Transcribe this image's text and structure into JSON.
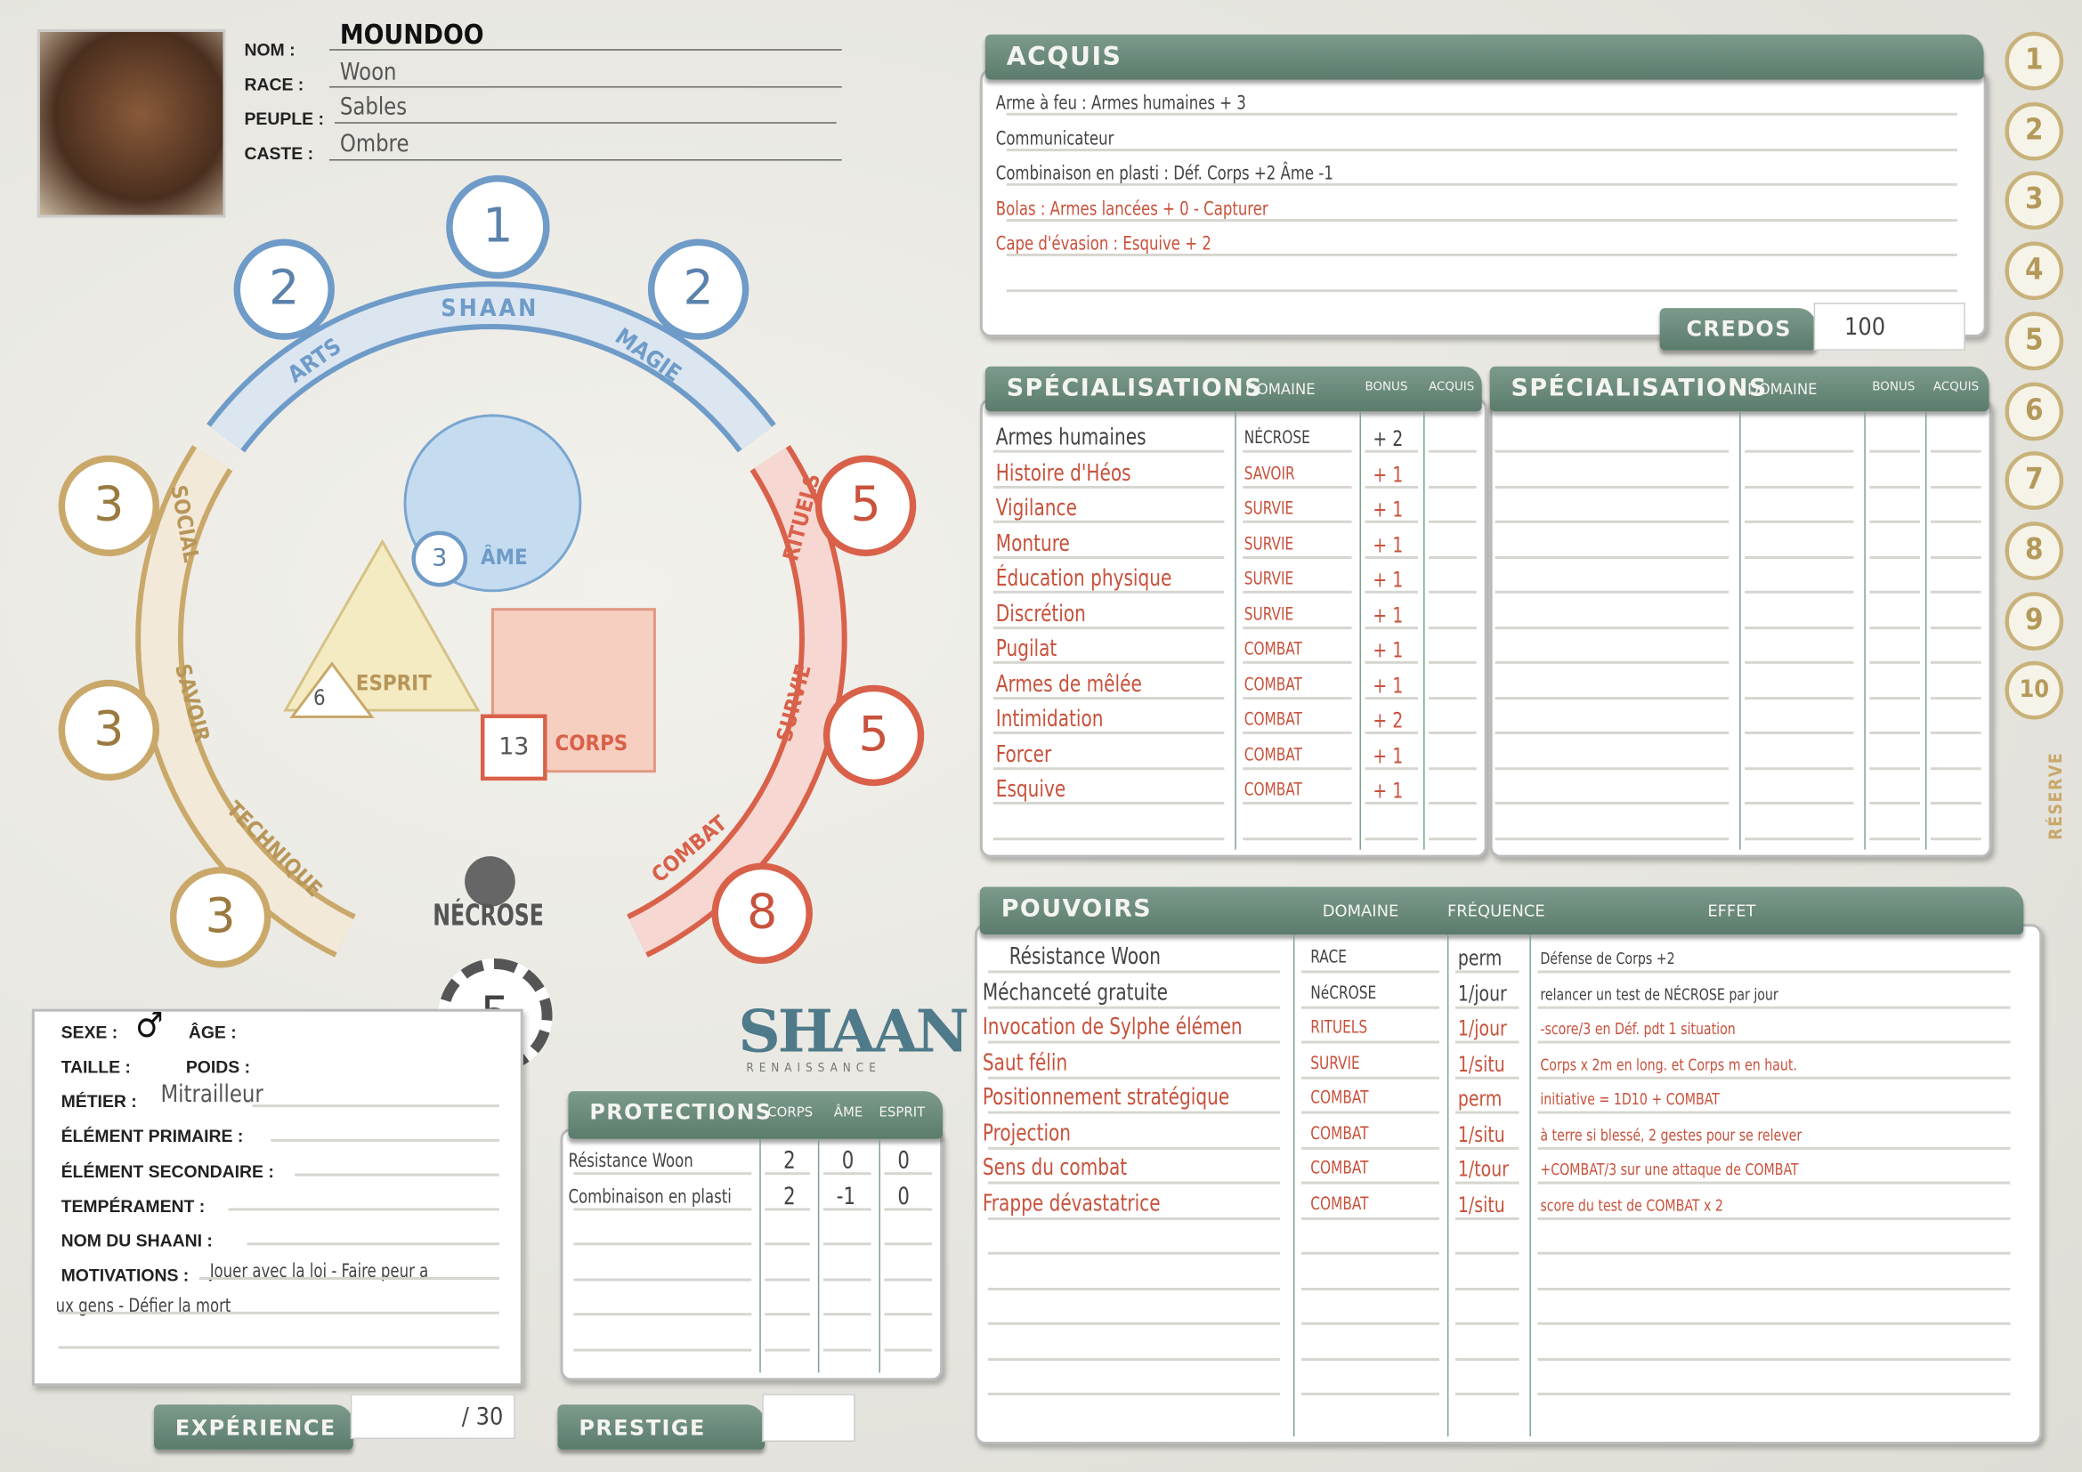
{
  "identity": {
    "nom_label": "NOM :",
    "nom": "MOUNDOO",
    "race_label": "RACE :",
    "race": "Woon",
    "peuple_label": "PEUPLE :",
    "peuple": "Sables",
    "caste_label": "CASTE :",
    "caste": "Ombre"
  },
  "wheel": {
    "shaan": {
      "label": "SHAAN",
      "score": "1"
    },
    "arts": {
      "label": "ARTS",
      "score": "2"
    },
    "magie": {
      "label": "MAGIE",
      "score": "2"
    },
    "social": {
      "label": "SOCIAL",
      "score": "3"
    },
    "savoir": {
      "label": "SAVOIR",
      "score": "3"
    },
    "technique": {
      "label": "TECHNIQUE",
      "score": "3"
    },
    "rituels": {
      "label": "RITUELS",
      "score": "5"
    },
    "survie": {
      "label": "SURVIE",
      "score": "5"
    },
    "combat": {
      "label": "COMBAT",
      "score": "8"
    },
    "necrose": {
      "label": "NÉCROSE",
      "score": "5"
    },
    "ame": {
      "label": "ÂME",
      "score": "3"
    },
    "esprit": {
      "label": "ESPRIT",
      "score": "6"
    },
    "corps": {
      "label": "CORPS",
      "score": "13"
    },
    "colors": {
      "shaan": "#6f9bc8",
      "humain": "#c9a86a",
      "necrose": "#d9614a"
    }
  },
  "profile": {
    "sexe_label": "SEXE :",
    "sexe_icon": "male-symbol",
    "age_label": "ÂGE :",
    "taille_label": "TAILLE :",
    "poids_label": "POIDS :",
    "metier_label": "MÉTIER :",
    "metier": "Mitrailleur",
    "element_primaire_label": "ÉLÉMENT PRIMAIRE :",
    "element_secondaire_label": "ÉLÉMENT SECONDAIRE :",
    "temperament_label": "TEMPÉRAMENT :",
    "nom_shaani_label": "NOM DU SHAANI :",
    "motivations_label": "MOTIVATIONS :",
    "motivations_line1": "Jouer avec la loi - Faire peur a",
    "motivations_line2": "ux gens - Défier la mort"
  },
  "experience": {
    "label": "EXPÉRIENCE",
    "value": "/ 30"
  },
  "prestige": {
    "label": "PRESTIGE",
    "value": ""
  },
  "logo": {
    "text": "SHAAN",
    "subtitle": "RENAISSANCE"
  },
  "protections": {
    "title": "PROTECTIONS",
    "headers": [
      "CORPS",
      "ÂME",
      "ESPRIT"
    ],
    "rows": [
      {
        "name": "Résistance Woon",
        "corps": "2",
        "ame": "0",
        "esprit": "0"
      },
      {
        "name": "Combinaison en plasti",
        "corps": "2",
        "ame": "-1",
        "esprit": "0"
      }
    ]
  },
  "acquis": {
    "title": "ACQUIS",
    "items": [
      {
        "text": "Arme à feu : Armes humaines + 3",
        "color": "grey"
      },
      {
        "text": "Communicateur",
        "color": "grey"
      },
      {
        "text": "Combinaison en plasti : Déf. Corps +2 Âme -1",
        "color": "grey"
      },
      {
        "text": "Bolas : Armes lancées + 0 - Capturer",
        "color": "red"
      },
      {
        "text": "Cape d'évasion : Esquive + 2",
        "color": "red"
      }
    ],
    "credos_label": "CREDOS",
    "credos": "100"
  },
  "specialisations": {
    "title": "SPÉCIALISATIONS",
    "headers": [
      "DOMAINE",
      "BONUS",
      "ACQUIS"
    ],
    "rows": [
      {
        "name": "Armes humaines",
        "domaine": "NÉCROSE",
        "bonus": "+ 2",
        "color": "grey"
      },
      {
        "name": "Histoire d'Héos",
        "domaine": "SAVOIR",
        "bonus": "+ 1",
        "color": "red"
      },
      {
        "name": "Vigilance",
        "domaine": "SURVIE",
        "bonus": "+ 1",
        "color": "red"
      },
      {
        "name": "Monture",
        "domaine": "SURVIE",
        "bonus": "+ 1",
        "color": "red"
      },
      {
        "name": "Éducation physique",
        "domaine": "SURVIE",
        "bonus": "+ 1",
        "color": "red"
      },
      {
        "name": "Discrétion",
        "domaine": "SURVIE",
        "bonus": "+ 1",
        "color": "red"
      },
      {
        "name": "Pugilat",
        "domaine": "COMBAT",
        "bonus": "+ 1",
        "color": "red"
      },
      {
        "name": "Armes de mêlée",
        "domaine": "COMBAT",
        "bonus": "+ 1",
        "color": "red"
      },
      {
        "name": "Intimidation",
        "domaine": "COMBAT",
        "bonus": "+ 2",
        "color": "red"
      },
      {
        "name": "Forcer",
        "domaine": "COMBAT",
        "bonus": "+ 1",
        "color": "red"
      },
      {
        "name": "Esquive",
        "domaine": "COMBAT",
        "bonus": "+ 1",
        "color": "red"
      }
    ]
  },
  "pouvoirs": {
    "title": "POUVOIRS",
    "headers": [
      "DOMAINE",
      "FRÉQUENCE",
      "EFFET"
    ],
    "rows": [
      {
        "name": "Résistance Woon",
        "domaine": "RACE",
        "frequence": "perm",
        "effet": "Défense de Corps +2",
        "color": "grey"
      },
      {
        "name": "Méchanceté gratuite",
        "domaine": "NéCROSE",
        "frequence": "1/jour",
        "effet": "relancer un test de NÉCROSE par jour",
        "color": "grey"
      },
      {
        "name": "Invocation de Sylphe élémen",
        "domaine": "RITUELS",
        "frequence": "1/jour",
        "effet": "-score/3 en Déf. pdt 1 situation",
        "color": "red"
      },
      {
        "name": "Saut félin",
        "domaine": "SURVIE",
        "frequence": "1/situ",
        "effet": "Corps x 2m en long. et Corps m en haut.",
        "color": "red"
      },
      {
        "name": "Positionnement stratégique",
        "domaine": "COMBAT",
        "frequence": "perm",
        "effet": "initiative = 1D10 + COMBAT",
        "color": "red"
      },
      {
        "name": "Projection",
        "domaine": "COMBAT",
        "frequence": "1/situ",
        "effet": "à terre si blessé, 2 gestes pour se relever",
        "color": "red"
      },
      {
        "name": "Sens du combat",
        "domaine": "COMBAT",
        "frequence": "1/tour",
        "effet": "+COMBAT/3 sur une attaque de COMBAT",
        "color": "red"
      },
      {
        "name": "Frappe dévastatrice",
        "domaine": "COMBAT",
        "frequence": "1/situ",
        "effet": "score du test de COMBAT x 2",
        "color": "red"
      }
    ]
  },
  "reserve": {
    "label": "RÉSERVE",
    "numbers": [
      "1",
      "2",
      "3",
      "4",
      "5",
      "6",
      "7",
      "8",
      "9",
      "10"
    ]
  }
}
